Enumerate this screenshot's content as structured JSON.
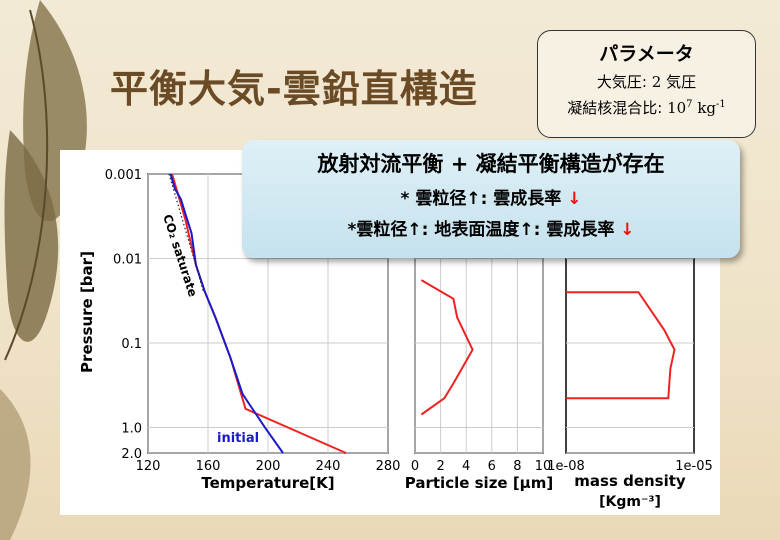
{
  "slide": {
    "title": "平衡大気-雲鉛直構造"
  },
  "param_box": {
    "heading": "パラメータ",
    "line1_label": "大気圧:",
    "line1_value": "2 気圧",
    "line2_label": "凝結核混合比:",
    "line2_value_base": "10",
    "line2_value_exp": "7",
    "line2_unit_base": "kg",
    "line2_unit_exp": "-1"
  },
  "callout": {
    "title": "放射対流平衡 + 凝結平衡構造が存在",
    "line1_prefix": "* 雲粒径",
    "line1_arrow1": "↑",
    "line1_mid": ": 雲成長率",
    "line1_arrow2": "↓",
    "line2_prefix": "*雲粒径",
    "line2_arrow1": "↑",
    "line2_mid": ": 地表面温度",
    "line2_arrow2": "↑",
    "line2_mid2": ": 雲成長率",
    "line2_arrow3": "↓"
  },
  "colors": {
    "title": "#6b4a26",
    "red": "#ee2222",
    "blue": "#1a1acc",
    "callout_bg": "#cfe8f1"
  },
  "chart_data": [
    {
      "type": "line",
      "xlabel": "Temperature[K]",
      "ylabel": "Pressure [bar]",
      "y_scale": "log",
      "y_inverted": true,
      "xlim": [
        120,
        280
      ],
      "ylim": [
        0.001,
        2.0
      ],
      "x_ticks": [
        "120",
        "160",
        "200",
        "240",
        "280"
      ],
      "y_ticks": [
        "0.001",
        "0.01",
        "0.1",
        "1.0",
        "2.0"
      ],
      "annotations": [
        "CO₂ saturate",
        "initial"
      ],
      "series": [
        {
          "color": "red",
          "x": [
            136,
            139,
            141,
            145,
            148,
            152,
            158,
            165,
            175,
            185,
            252
          ],
          "y": [
            0.001,
            0.0015,
            0.002,
            0.0035,
            0.006,
            0.012,
            0.025,
            0.05,
            0.15,
            0.6,
            2.0
          ]
        },
        {
          "name": "initial",
          "color": "blue",
          "x": [
            135,
            138,
            142,
            145,
            149,
            152,
            158,
            165,
            175,
            183,
            198,
            210
          ],
          "y": [
            0.001,
            0.0015,
            0.002,
            0.003,
            0.005,
            0.012,
            0.025,
            0.05,
            0.15,
            0.4,
            1.0,
            2.0
          ]
        },
        {
          "color": "black-dotted",
          "x": [
            134,
            139,
            144,
            149,
            152,
            157
          ],
          "y": [
            0.001,
            0.002,
            0.004,
            0.008,
            0.012,
            0.025
          ]
        }
      ]
    },
    {
      "type": "line",
      "xlabel": "Particle size [μm]",
      "xlim": [
        0,
        10
      ],
      "x_ticks": [
        "0",
        "2",
        "4",
        "6",
        "8",
        "10"
      ],
      "series": [
        {
          "color": "red",
          "x": [
            0.5,
            3.0,
            3.3,
            4.5,
            3.0,
            2.3,
            0.5
          ],
          "y": [
            0.018,
            0.03,
            0.05,
            0.12,
            0.3,
            0.45,
            0.7
          ]
        }
      ]
    },
    {
      "type": "line",
      "xlabel": "mass density",
      "xlabel2": "[Kgm⁻³]",
      "x_scale": "log",
      "xlim": [
        1e-08,
        1e-05
      ],
      "x_ticks": [
        "1e-08",
        "1e-05"
      ],
      "series": [
        {
          "color": "red",
          "x": [
            1e-08,
            5e-07,
            2e-06,
            3.5e-06,
            2.8e-06,
            2.5e-06,
            1e-08
          ],
          "y": [
            0.025,
            0.025,
            0.07,
            0.12,
            0.2,
            0.45,
            0.45
          ]
        }
      ]
    }
  ]
}
